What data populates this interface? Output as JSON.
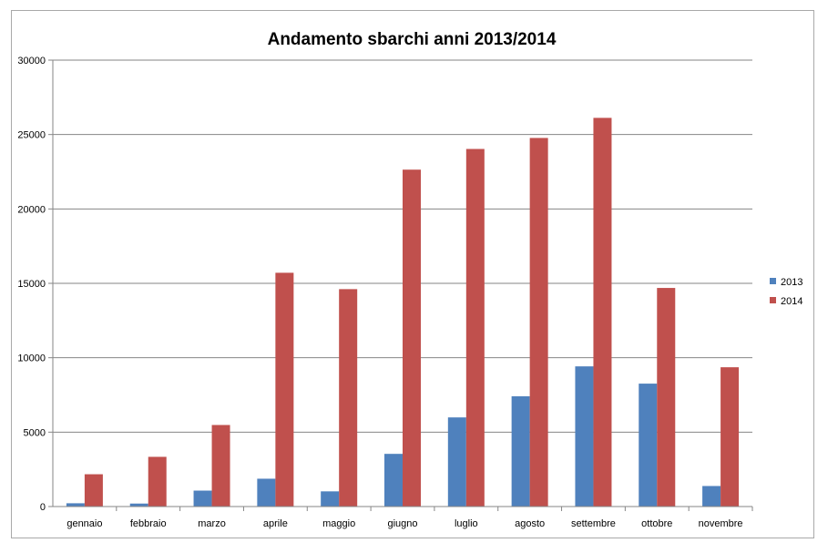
{
  "chart_data": {
    "type": "bar",
    "title": "Andamento sbarchi anni 2013/2014",
    "xlabel": "",
    "ylabel": "",
    "categories": [
      "gennaio",
      "febbraio",
      "marzo",
      "aprile",
      "maggio",
      "giugno",
      "luglio",
      "agosto",
      "settembre",
      "ottobre",
      "novembre"
    ],
    "series": [
      {
        "name": "2013",
        "color": "#4f81bd",
        "values": [
          220,
          200,
          1070,
          1870,
          1020,
          3540,
          5990,
          7410,
          9420,
          8260,
          1380
        ]
      },
      {
        "name": "2014",
        "color": "#c0504d",
        "values": [
          2170,
          3340,
          5480,
          15710,
          14610,
          22640,
          24030,
          24770,
          26120,
          14690,
          9360
        ]
      }
    ],
    "ylim": [
      0,
      30000
    ],
    "yticks": [
      "0",
      "5000",
      "10000",
      "15000",
      "20000",
      "25000",
      "30000"
    ],
    "grid": true,
    "legend_position": "right"
  }
}
